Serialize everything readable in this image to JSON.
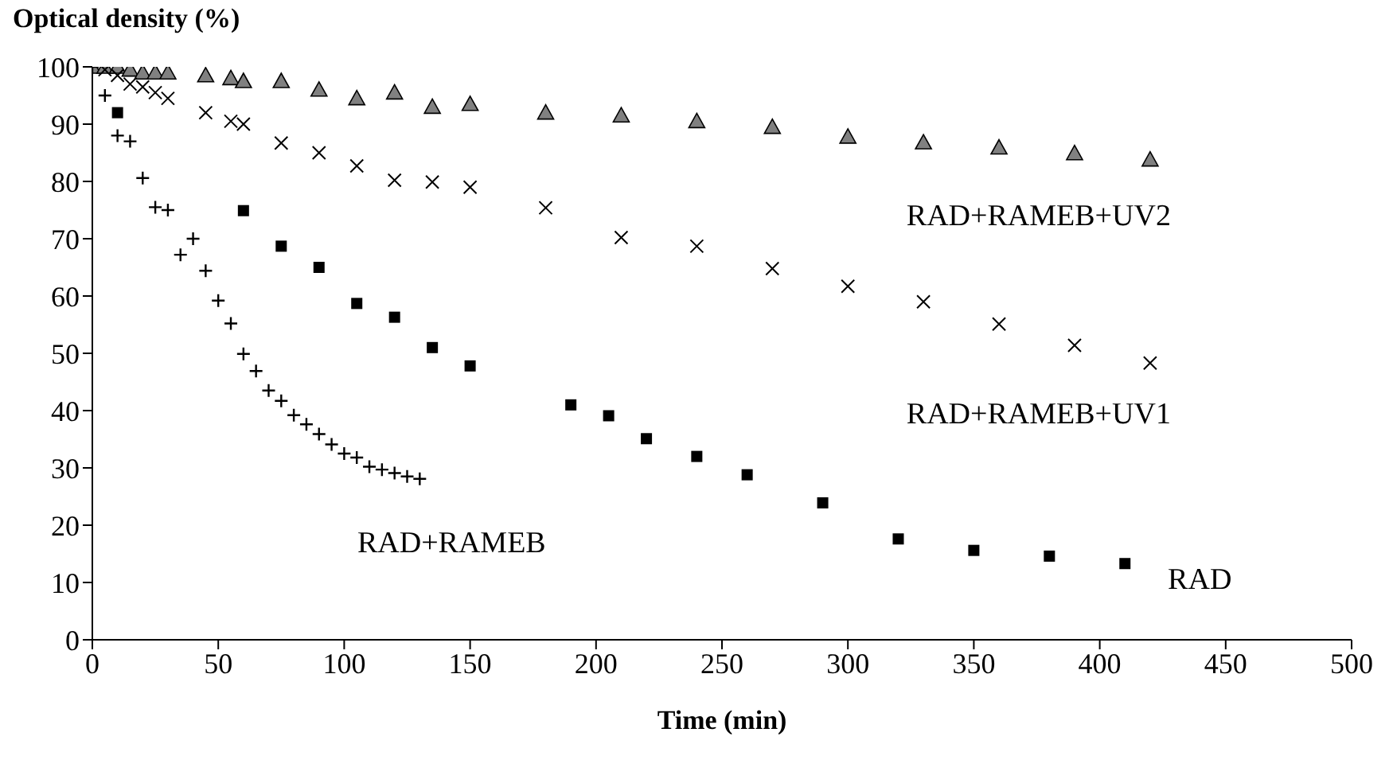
{
  "chart_data": {
    "type": "scatter",
    "xlabel": "Time (min)",
    "ylabel": "Optical density (%)",
    "xlim": [
      0,
      500
    ],
    "xticks": [
      0,
      50,
      100,
      150,
      200,
      250,
      300,
      350,
      400,
      450,
      500
    ],
    "ylim": [
      0,
      100
    ],
    "yticks": [
      0,
      10,
      20,
      30,
      40,
      50,
      60,
      70,
      80,
      90,
      100
    ],
    "series": [
      {
        "name": "RAD+RAMEB+UV2",
        "color": "#808080",
        "marker": "triangle",
        "x": [
          0,
          5,
          10,
          15,
          20,
          25,
          30,
          45,
          55,
          60,
          75,
          90,
          105,
          120,
          135,
          150,
          180,
          210,
          240,
          270,
          300,
          330,
          360,
          390,
          420
        ],
        "values": [
          100,
          100,
          100,
          99.5,
          99,
          99,
          99,
          98.5,
          98,
          97.5,
          97.5,
          96,
          94.5,
          95.5,
          93,
          93.5,
          92,
          91.5,
          90.5,
          89.5,
          87.8,
          86.8,
          85.9,
          84.9,
          83.8
        ]
      },
      {
        "name": "RAD+RAMEB+UV1",
        "color": "#000000",
        "marker": "cross",
        "x": [
          5,
          10,
          15,
          20,
          25,
          30,
          45,
          55,
          60,
          75,
          90,
          105,
          120,
          135,
          150,
          180,
          210,
          240,
          270,
          300,
          330,
          360,
          390,
          420
        ],
        "values": [
          99.5,
          98.5,
          97,
          96.5,
          95.5,
          94.5,
          92,
          90.5,
          90,
          86.7,
          85,
          82.7,
          80.2,
          79.9,
          79,
          75.4,
          70.2,
          68.7,
          64.8,
          61.7,
          59,
          55.1,
          51.4,
          48.3
        ]
      },
      {
        "name": "RAD",
        "color": "#000000",
        "marker": "square",
        "x": [
          10,
          60,
          75,
          90,
          105,
          120,
          135,
          150,
          190,
          205,
          220,
          240,
          260,
          290,
          320,
          350,
          380,
          410
        ],
        "values": [
          92,
          74.9,
          68.7,
          65,
          58.7,
          56.3,
          51,
          47.8,
          41,
          39.1,
          35.1,
          32,
          28.8,
          23.9,
          17.6,
          15.6,
          14.6,
          13.3
        ]
      },
      {
        "name": "RAD+RAMEB",
        "color": "#000000",
        "marker": "plus",
        "x": [
          0,
          5,
          10,
          15,
          20,
          25,
          30,
          35,
          40,
          45,
          50,
          55,
          60,
          65,
          70,
          75,
          80,
          85,
          90,
          95,
          100,
          105,
          110,
          115,
          120,
          125,
          130
        ],
        "values": [
          100,
          95,
          88,
          87,
          80.6,
          75.5,
          75,
          67.2,
          70,
          64.4,
          59.2,
          55.2,
          49.9,
          46.9,
          43.5,
          41.7,
          39.2,
          37.6,
          35.9,
          34.1,
          32.5,
          31.8,
          30.2,
          29.7,
          29.1,
          28.5,
          28.1
        ]
      }
    ]
  }
}
